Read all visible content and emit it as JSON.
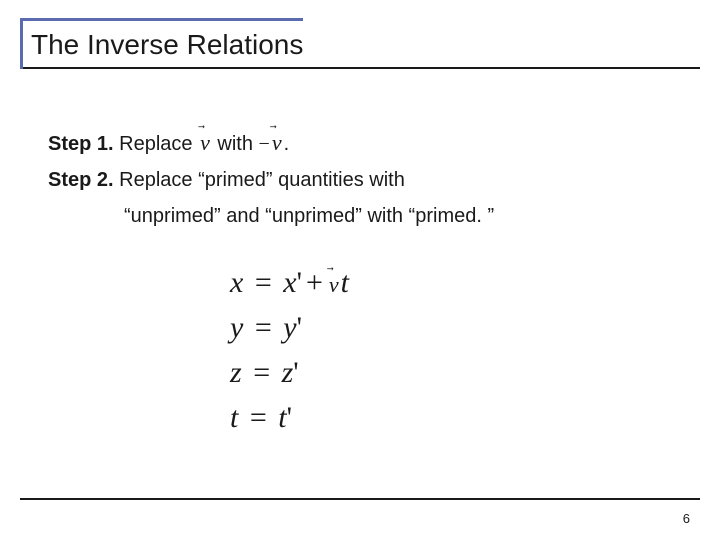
{
  "title": "The Inverse Relations",
  "step1": {
    "label": "Step 1.",
    "text_before": " Replace ",
    "vec1": "v",
    "text_mid": " with ",
    "neg": "−",
    "vec2": "v",
    "text_after": "."
  },
  "step2": {
    "label": "Step 2.",
    "line1": " Replace “primed” quantities with",
    "line2": "“unprimed” and “unprimed” with “primed. ”"
  },
  "equations": {
    "eq1": {
      "lhs": "x",
      "op": "=",
      "rhs_a": "x",
      "prime": "'",
      "plus": "+",
      "vec": "v",
      "t": "t"
    },
    "eq2": {
      "lhs": "y",
      "op": "=",
      "rhs": "y",
      "prime": "'"
    },
    "eq3": {
      "lhs": "z",
      "op": "=",
      "rhs": "z",
      "prime": "'"
    },
    "eq4": {
      "lhs": "t",
      "op": "=",
      "rhs": "t",
      "prime": "'"
    }
  },
  "page_number": "6",
  "colors": {
    "accent": "#5a6bb0",
    "text": "#1a1a1a",
    "background": "#ffffff"
  }
}
